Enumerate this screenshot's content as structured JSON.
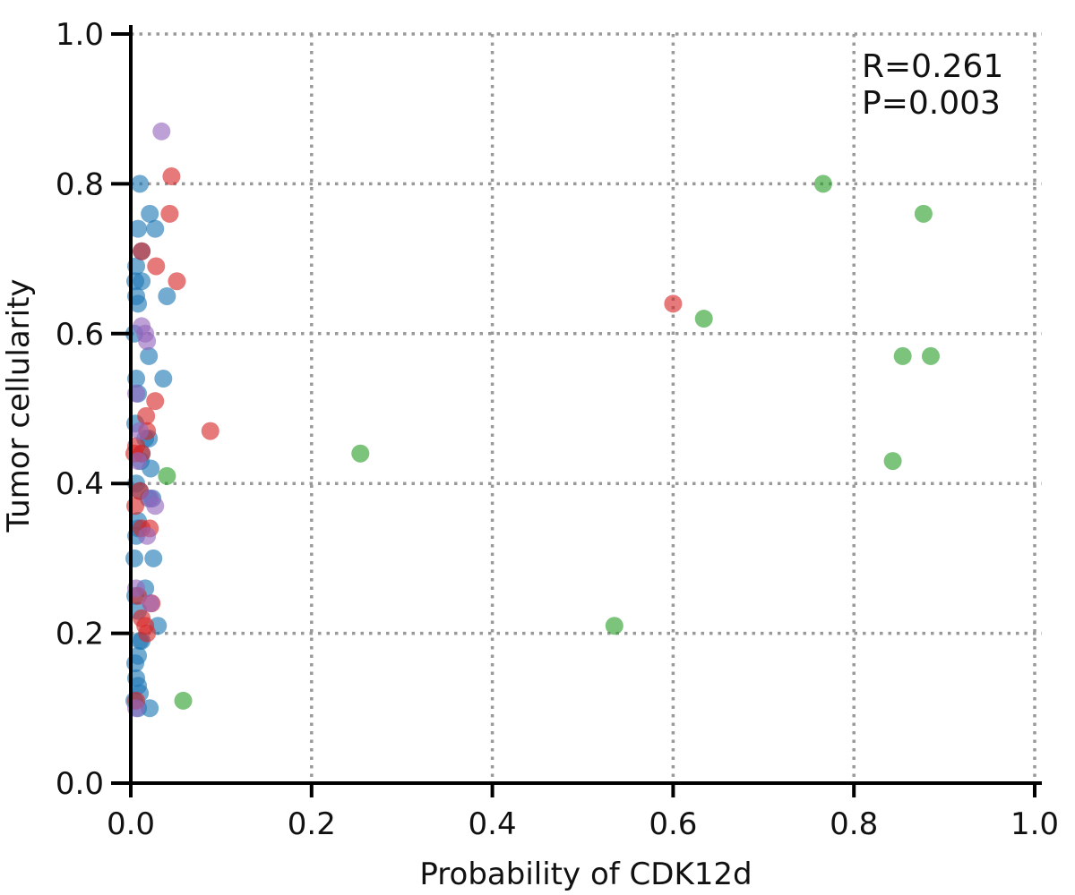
{
  "chart_data": {
    "type": "scatter",
    "xlabel": "Probability of CDK12d",
    "ylabel": "Tumor cellularity",
    "xlim": [
      0,
      1.0
    ],
    "ylim": [
      0,
      1.0
    ],
    "xticks": [
      "0.0",
      "0.2",
      "0.4",
      "0.6",
      "0.8",
      "1.0"
    ],
    "yticks": [
      "0.0",
      "0.2",
      "0.4",
      "0.6",
      "0.8",
      "1.0"
    ],
    "grid": "dotted gray at major ticks",
    "annotations": [
      "R=0.261",
      "P=0.003"
    ],
    "series": [
      {
        "color": "#1f77b4",
        "points": [
          [
            0.01,
            0.8
          ],
          [
            0.021,
            0.76
          ],
          [
            0.008,
            0.74
          ],
          [
            0.027,
            0.74
          ],
          [
            0.012,
            0.71
          ],
          [
            0.006,
            0.69
          ],
          [
            0.012,
            0.67
          ],
          [
            0.005,
            0.67
          ],
          [
            0.006,
            0.65
          ],
          [
            0.04,
            0.65
          ],
          [
            0.008,
            0.64
          ],
          [
            0.004,
            0.6
          ],
          [
            0.02,
            0.57
          ],
          [
            0.006,
            0.54
          ],
          [
            0.036,
            0.54
          ],
          [
            0.008,
            0.52
          ],
          [
            0.005,
            0.48
          ],
          [
            0.016,
            0.46
          ],
          [
            0.02,
            0.46
          ],
          [
            0.012,
            0.44
          ],
          [
            0.011,
            0.43
          ],
          [
            0.022,
            0.42
          ],
          [
            0.006,
            0.4
          ],
          [
            0.01,
            0.39
          ],
          [
            0.02,
            0.38
          ],
          [
            0.024,
            0.38
          ],
          [
            0.008,
            0.35
          ],
          [
            0.008,
            0.34
          ],
          [
            0.006,
            0.33
          ],
          [
            0.025,
            0.3
          ],
          [
            0.004,
            0.3
          ],
          [
            0.016,
            0.26
          ],
          [
            0.005,
            0.25
          ],
          [
            0.008,
            0.23
          ],
          [
            0.03,
            0.21
          ],
          [
            0.01,
            0.19
          ],
          [
            0.012,
            0.19
          ],
          [
            0.008,
            0.17
          ],
          [
            0.005,
            0.16
          ],
          [
            0.006,
            0.14
          ],
          [
            0.008,
            0.13
          ],
          [
            0.01,
            0.12
          ],
          [
            0.004,
            0.11
          ],
          [
            0.008,
            0.1
          ],
          [
            0.021,
            0.1
          ]
        ]
      },
      {
        "color": "#d62728",
        "points": [
          [
            0.045,
            0.81
          ],
          [
            0.043,
            0.76
          ],
          [
            0.012,
            0.71
          ],
          [
            0.028,
            0.69
          ],
          [
            0.051,
            0.67
          ],
          [
            0.6,
            0.64
          ],
          [
            0.027,
            0.51
          ],
          [
            0.017,
            0.49
          ],
          [
            0.088,
            0.47
          ],
          [
            0.018,
            0.47
          ],
          [
            0.012,
            0.44
          ],
          [
            0.004,
            0.44
          ],
          [
            0.006,
            0.45
          ],
          [
            0.01,
            0.39
          ],
          [
            0.005,
            0.37
          ],
          [
            0.021,
            0.34
          ],
          [
            0.012,
            0.34
          ],
          [
            0.008,
            0.25
          ],
          [
            0.023,
            0.24
          ],
          [
            0.012,
            0.22
          ],
          [
            0.016,
            0.21
          ],
          [
            0.018,
            0.2
          ],
          [
            0.006,
            0.11
          ]
        ]
      },
      {
        "color": "#9467bd",
        "points": [
          [
            0.034,
            0.87
          ],
          [
            0.012,
            0.61
          ],
          [
            0.016,
            0.6
          ],
          [
            0.018,
            0.59
          ],
          [
            0.006,
            0.52
          ],
          [
            0.01,
            0.47
          ],
          [
            0.008,
            0.43
          ],
          [
            0.022,
            0.38
          ],
          [
            0.027,
            0.37
          ],
          [
            0.018,
            0.33
          ],
          [
            0.006,
            0.26
          ],
          [
            0.022,
            0.24
          ],
          [
            0.006,
            0.1
          ]
        ]
      },
      {
        "color": "#2ca02c",
        "points": [
          [
            0.766,
            0.8
          ],
          [
            0.877,
            0.76
          ],
          [
            0.634,
            0.62
          ],
          [
            0.854,
            0.57
          ],
          [
            0.885,
            0.57
          ],
          [
            0.843,
            0.43
          ],
          [
            0.254,
            0.44
          ],
          [
            0.04,
            0.41
          ],
          [
            0.535,
            0.21
          ],
          [
            0.058,
            0.11
          ]
        ]
      }
    ]
  }
}
